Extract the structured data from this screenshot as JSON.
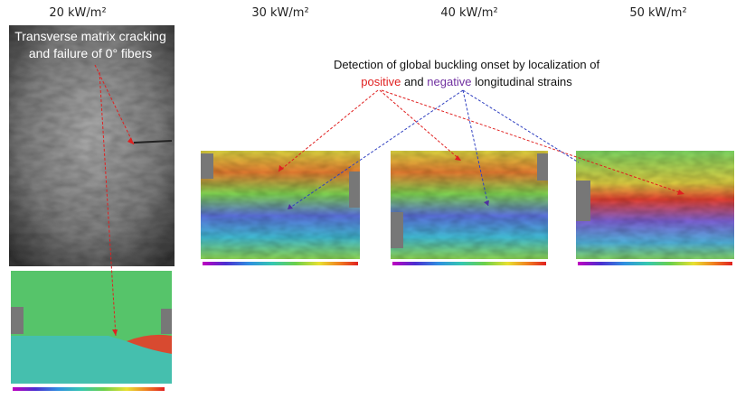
{
  "headings": [
    "20 kW/m²",
    "30 kW/m²",
    "40 kW/m²",
    "50 kW/m²"
  ],
  "left_annotation": {
    "lines": [
      "Transverse matrix cracking",
      "and failure of 0° fibers"
    ]
  },
  "center_annotation": {
    "line1": "Detection of global buckling onset by localization of",
    "positive": "positive",
    "and": "and",
    "negative": "negative",
    "end": "longitudinal strains"
  }
}
